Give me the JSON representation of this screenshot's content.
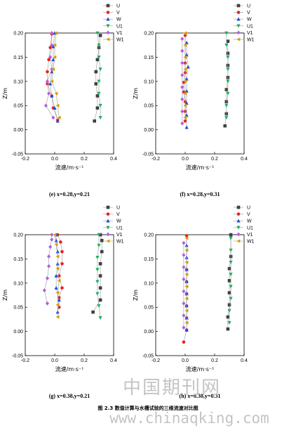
{
  "series_styles": [
    {
      "key": "U",
      "color": "#404040",
      "shape": "square"
    },
    {
      "key": "V",
      "color": "#e8231f",
      "shape": "circle"
    },
    {
      "key": "W",
      "color": "#1f4fd6",
      "shape": "triangle-up"
    },
    {
      "key": "U1",
      "color": "#21ad64",
      "shape": "triangle-down"
    },
    {
      "key": "V1",
      "color": "#b160e0",
      "shape": "diamond"
    },
    {
      "key": "W1",
      "color": "#d1a00c",
      "shape": "triangle-left"
    }
  ],
  "chart_data": [
    {
      "type": "line",
      "caption": "(e) x=0.28,y=0.21",
      "xlabel": "流速/m·s⁻¹",
      "ylabel": "Z/m",
      "xlim": [
        -0.2,
        0.4
      ],
      "ylim": [
        -0.05,
        0.2
      ],
      "xticks": [
        "-0.2",
        "0.0",
        "0.2",
        "0.4"
      ],
      "yticks": [
        "-0.05",
        "0.00",
        "0.05",
        "0.10",
        "0.15",
        "0.20"
      ],
      "series": [
        {
          "name": "U",
          "x": [
            0.27,
            0.29,
            0.29,
            0.28,
            0.28,
            0.29,
            0.3,
            0.31
          ],
          "y": [
            0.018,
            0.045,
            0.07,
            0.095,
            0.12,
            0.145,
            0.17,
            0.195
          ]
        },
        {
          "name": "V",
          "x": [
            0.02,
            -0.01,
            -0.02,
            -0.05,
            -0.05,
            -0.04,
            -0.03,
            -0.02
          ],
          "y": [
            0.02,
            0.045,
            0.07,
            0.095,
            0.12,
            0.145,
            0.17,
            0.198
          ]
        },
        {
          "name": "W",
          "x": [
            0.02,
            0.0,
            -0.02,
            -0.03,
            -0.02,
            -0.01,
            -0.01,
            0.0
          ],
          "y": [
            0.018,
            0.045,
            0.07,
            0.095,
            0.12,
            0.145,
            0.172,
            0.2
          ]
        },
        {
          "name": "U1",
          "x": [
            0.31,
            0.31,
            0.3,
            0.3,
            0.31,
            0.3,
            0.3,
            0.29
          ],
          "y": [
            0.025,
            0.05,
            0.075,
            0.1,
            0.125,
            0.15,
            0.175,
            0.2
          ]
        },
        {
          "name": "V1",
          "x": [
            -0.01,
            -0.06,
            -0.04,
            -0.05,
            -0.02,
            -0.03,
            -0.02,
            -0.02
          ],
          "y": [
            0.025,
            0.05,
            0.075,
            0.1,
            0.125,
            0.15,
            0.175,
            0.2
          ]
        },
        {
          "name": "W1",
          "x": [
            0.03,
            0.02,
            0.01,
            -0.02,
            -0.01,
            0.0,
            0.0,
            0.01
          ],
          "y": [
            0.025,
            0.05,
            0.075,
            0.1,
            0.125,
            0.15,
            0.175,
            0.2
          ]
        }
      ]
    },
    {
      "type": "line",
      "caption": "(f) x=0.28,y=0.31",
      "xlabel": "流速/m·s⁻¹",
      "ylabel": "Z/m",
      "xlim": [
        -0.2,
        0.4
      ],
      "ylim": [
        -0.05,
        0.2
      ],
      "xticks": [
        "-0.2",
        "0.0",
        "0.2",
        "0.4"
      ],
      "yticks": [
        "-0.05",
        "0.00",
        "0.05",
        "0.10",
        "0.15",
        "0.20"
      ],
      "series": [
        {
          "name": "U",
          "x": [
            0.27,
            0.28,
            0.28,
            0.28,
            0.29,
            0.29,
            0.29,
            0.29
          ],
          "y": [
            0.008,
            0.033,
            0.058,
            0.083,
            0.108,
            0.133,
            0.158,
            0.183
          ]
        },
        {
          "name": "V",
          "x": [
            0.0,
            0.0,
            0.0,
            -0.01,
            -0.01,
            0.0,
            0.0,
            0.0
          ],
          "y": [
            0.018,
            0.038,
            0.058,
            0.078,
            0.098,
            0.118,
            0.138,
            0.195
          ]
        },
        {
          "name": "W",
          "x": [
            0.01,
            0.01,
            0.01,
            0.01,
            0.01,
            0.02,
            0.01,
            0.01
          ],
          "y": [
            0.005,
            0.03,
            0.055,
            0.08,
            0.105,
            0.13,
            0.155,
            0.18
          ]
        },
        {
          "name": "U1",
          "x": [
            0.28,
            0.28,
            0.29,
            0.29,
            0.29,
            0.29,
            0.28,
            0.28
          ],
          "y": [
            0.025,
            0.05,
            0.075,
            0.1,
            0.125,
            0.15,
            0.175,
            0.2
          ]
        },
        {
          "name": "V1",
          "x": [
            -0.02,
            -0.02,
            -0.02,
            -0.02,
            -0.02,
            -0.02,
            -0.02,
            -0.02
          ],
          "y": [
            0.013,
            0.038,
            0.063,
            0.088,
            0.113,
            0.138,
            0.163,
            0.188
          ]
        },
        {
          "name": "W1",
          "x": [
            0.0,
            0.0,
            0.0,
            0.0,
            0.0,
            0.0,
            0.0,
            0.0
          ],
          "y": [
            0.025,
            0.05,
            0.075,
            0.1,
            0.125,
            0.15,
            0.175,
            0.2
          ]
        }
      ]
    },
    {
      "type": "line",
      "caption": "(g) x=0.38,y=0.21",
      "xlabel": "流速/m·s⁻¹",
      "ylabel": "Z/m",
      "xlim": [
        -0.2,
        0.4
      ],
      "ylim": [
        -0.05,
        0.2
      ],
      "xticks": [
        "-0.2",
        "0.0",
        "0.2",
        "0.4"
      ],
      "yticks": [
        "-0.05",
        "0.00",
        "0.05",
        "0.10",
        "0.15",
        "0.20"
      ],
      "series": [
        {
          "name": "U",
          "x": [
            0.26,
            0.31,
            0.31,
            0.31,
            0.31,
            0.32,
            0.32,
            0.31
          ],
          "y": [
            0.04,
            0.065,
            0.09,
            0.115,
            0.14,
            0.165,
            0.188,
            0.2
          ]
        },
        {
          "name": "V",
          "x": [
            0.03,
            0.03,
            0.05,
            0.03,
            0.05,
            0.05,
            0.04,
            0.02
          ],
          "y": [
            0.05,
            0.07,
            0.09,
            0.115,
            0.14,
            0.165,
            0.185,
            0.2
          ]
        },
        {
          "name": "W",
          "x": [
            0.02,
            0.03,
            0.01,
            0.01,
            0.02,
            0.02,
            0.01,
            0.01
          ],
          "y": [
            0.04,
            0.065,
            0.09,
            0.115,
            0.14,
            0.165,
            0.188,
            0.2
          ]
        },
        {
          "name": "U1",
          "x": [
            0.31,
            0.3,
            0.29,
            0.29,
            0.29,
            0.29,
            0.3,
            0.3
          ],
          "y": [
            0.028,
            0.053,
            0.078,
            0.103,
            0.128,
            0.153,
            0.178,
            0.2
          ]
        },
        {
          "name": "V1",
          "x": [
            -0.05,
            -0.07,
            -0.05,
            -0.04,
            -0.04,
            -0.03,
            -0.02,
            -0.02
          ],
          "y": [
            0.058,
            0.085,
            0.11,
            0.135,
            0.155,
            0.175,
            0.19,
            0.2
          ]
        },
        {
          "name": "W1",
          "x": [
            0.02,
            0.02,
            0.02,
            0.03,
            0.02,
            0.02,
            0.01,
            0.0
          ],
          "y": [
            0.03,
            0.055,
            0.08,
            0.105,
            0.13,
            0.155,
            0.18,
            0.2
          ]
        }
      ]
    },
    {
      "type": "line",
      "caption": "(h) x=0.38,y=0.31",
      "xlabel": "流速/m·s⁻¹",
      "ylabel": "Z/m",
      "xlim": [
        -0.2,
        0.4
      ],
      "ylim": [
        -0.05,
        0.2
      ],
      "xticks": [
        "-0.2",
        "0.0",
        "0.2",
        "0.4"
      ],
      "yticks": [
        "-0.05",
        "0.00",
        "0.05",
        "0.10",
        "0.15",
        "0.20"
      ],
      "series": [
        {
          "name": "U",
          "x": [
            0.29,
            0.29,
            0.3,
            0.3,
            0.3,
            0.3,
            0.31,
            0.31
          ],
          "y": [
            0.005,
            0.03,
            0.055,
            0.08,
            0.105,
            0.13,
            0.155,
            0.2
          ]
        },
        {
          "name": "V",
          "x": [
            -0.01,
            0.01,
            0.01,
            0.01,
            0.01,
            0.01,
            0.01,
            0.01
          ],
          "y": [
            -0.022,
            0.003,
            0.028,
            0.053,
            0.078,
            0.103,
            0.128,
            0.198
          ]
        },
        {
          "name": "W",
          "x": [
            0.01,
            0.01,
            0.01,
            0.01,
            0.01,
            0.01,
            0.01,
            0.01
          ],
          "y": [
            0.003,
            0.028,
            0.053,
            0.078,
            0.103,
            0.128,
            0.153,
            0.178
          ]
        },
        {
          "name": "U1",
          "x": [
            0.3,
            0.3,
            0.31,
            0.31,
            0.31,
            0.31,
            0.31,
            0.31
          ],
          "y": [
            0.018,
            0.043,
            0.068,
            0.093,
            0.118,
            0.143,
            0.168,
            0.193
          ]
        },
        {
          "name": "V1",
          "x": [
            -0.01,
            -0.01,
            -0.01,
            -0.01,
            -0.01,
            -0.01,
            -0.01,
            -0.01
          ],
          "y": [
            0.008,
            0.033,
            0.058,
            0.083,
            0.108,
            0.133,
            0.158,
            0.183
          ]
        },
        {
          "name": "W1",
          "x": [
            0.01,
            0.01,
            0.01,
            0.01,
            0.01,
            0.01,
            0.01,
            0.01
          ],
          "y": [
            0.018,
            0.043,
            0.068,
            0.093,
            0.118,
            0.143,
            0.168,
            0.193
          ]
        }
      ]
    }
  ],
  "figure_caption": "图 2.3   数值计算与水槽试验的三维流速对比图",
  "watermark": {
    "chinese": "中国期刊网",
    "url": "www.chinaqking.com"
  }
}
